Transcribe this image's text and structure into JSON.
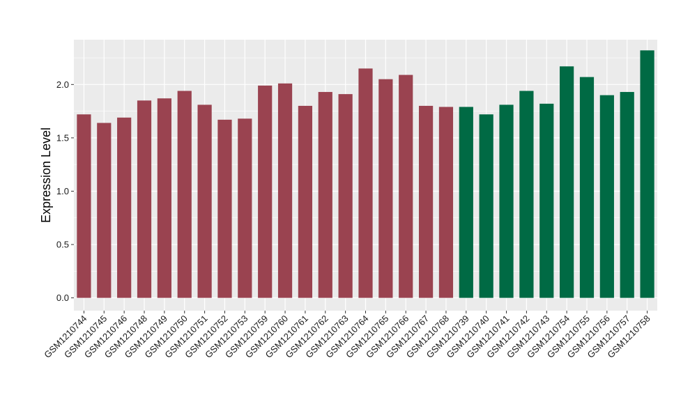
{
  "chart_data": {
    "type": "bar",
    "title": "",
    "xlabel": "",
    "ylabel": "Expression Level",
    "ylim": [
      -0.12,
      2.42
    ],
    "yticks": [
      "0.0",
      "0.5",
      "1.0",
      "1.5",
      "2.0"
    ],
    "grid": true,
    "legend": "none",
    "categories": [
      "GSM1210744",
      "GSM1210745",
      "GSM1210746",
      "GSM1210748",
      "GSM1210749",
      "GSM1210750",
      "GSM1210751",
      "GSM1210752",
      "GSM1210753",
      "GSM1210759",
      "GSM1210760",
      "GSM1210761",
      "GSM1210762",
      "GSM1210763",
      "GSM1210764",
      "GSM1210765",
      "GSM1210766",
      "GSM1210767",
      "GSM1210768",
      "GSM1210739",
      "GSM1210740",
      "GSM1210741",
      "GSM1210742",
      "GSM1210743",
      "GSM1210754",
      "GSM1210755",
      "GSM1210756",
      "GSM1210757",
      "GSM1210758"
    ],
    "values": [
      1.72,
      1.64,
      1.69,
      1.85,
      1.87,
      1.94,
      1.81,
      1.67,
      1.68,
      1.99,
      2.01,
      1.8,
      1.93,
      1.91,
      2.15,
      2.05,
      2.09,
      1.8,
      1.79,
      1.79,
      1.72,
      1.81,
      1.94,
      1.82,
      2.17,
      2.07,
      1.9,
      1.93,
      2.32
    ],
    "bar_groups": [
      0,
      0,
      0,
      0,
      0,
      0,
      0,
      0,
      0,
      0,
      0,
      0,
      0,
      0,
      0,
      0,
      0,
      0,
      0,
      1,
      1,
      1,
      1,
      1,
      1,
      1,
      1,
      1,
      1
    ],
    "group_colors": [
      "#9a4350",
      "#006a44"
    ],
    "panel_background": "#ebebeb",
    "grid_color": "#ffffff"
  }
}
